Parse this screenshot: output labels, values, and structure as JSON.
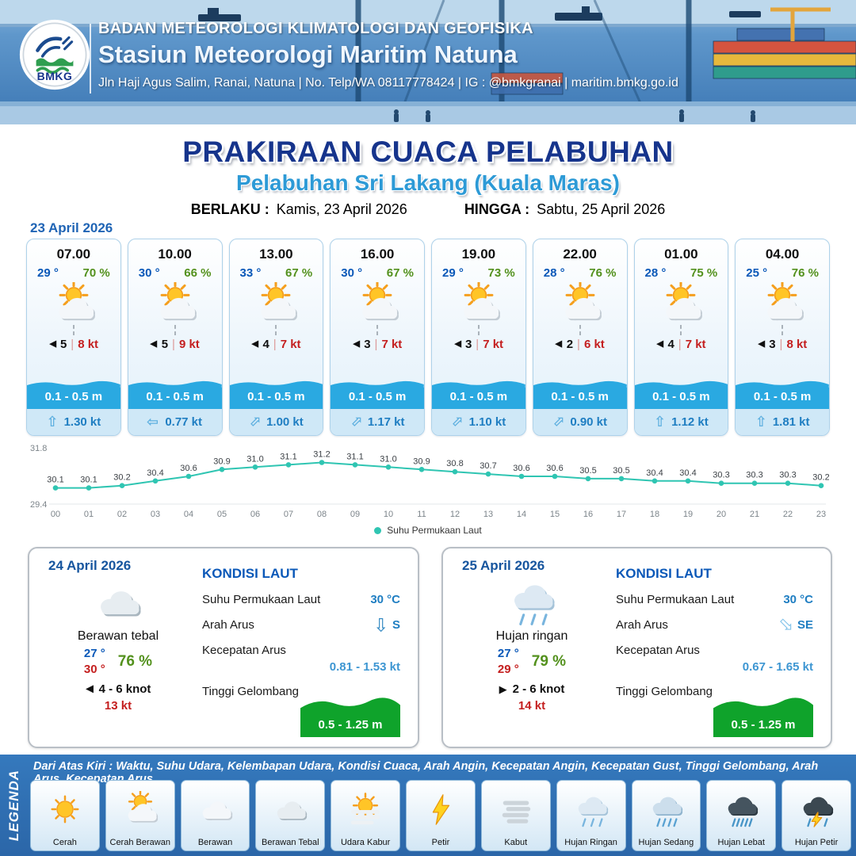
{
  "header": {
    "logo_text": "BMKG",
    "agency": "BADAN METEOROLOGI KLIMATOLOGI DAN GEOFISIKA",
    "station": "Stasiun Meteorologi Maritim Natuna",
    "contact": "Jln Haji Agus Salim, Ranai, Natuna  | No. Telp/WA 08117778424 | IG : @bmkgranai | maritim.bmkg.go.id"
  },
  "title": {
    "main": "PRAKIRAAN CUACA PELABUHAN",
    "subtitle": "Pelabuhan Sri Lakang (Kuala Maras)",
    "valid_from_label": "BERLAKU :",
    "valid_from": "Kamis, 23 April 2026",
    "valid_to_label": "HINGGA :",
    "valid_to": "Sabtu, 25 April 2026"
  },
  "forecast_date": "23 April 2026",
  "ui": {
    "wind_separator": "|"
  },
  "cards": [
    {
      "time": "07.00",
      "temp": "29 °",
      "humidity": "70 %",
      "icon": "cerah-berawan",
      "wind_dir": "left",
      "wind_speed": "5",
      "wind_gust": "8 kt",
      "wave": "0.1 - 0.5 m",
      "current_dir": "up",
      "current": "1.30 kt"
    },
    {
      "time": "10.00",
      "temp": "30 °",
      "humidity": "66 %",
      "icon": "cerah-berawan",
      "wind_dir": "left",
      "wind_speed": "5",
      "wind_gust": "9 kt",
      "wave": "0.1 - 0.5 m",
      "current_dir": "left",
      "current": "0.77 kt"
    },
    {
      "time": "13.00",
      "temp": "33 °",
      "humidity": "67 %",
      "icon": "cerah-berawan",
      "wind_dir": "left",
      "wind_speed": "4",
      "wind_gust": "7 kt",
      "wave": "0.1 - 0.5 m",
      "current_dir": "up-right",
      "current": "1.00 kt"
    },
    {
      "time": "16.00",
      "temp": "30 °",
      "humidity": "67 %",
      "icon": "cerah-berawan",
      "wind_dir": "left",
      "wind_speed": "3",
      "wind_gust": "7 kt",
      "wave": "0.1 - 0.5 m",
      "current_dir": "up-right",
      "current": "1.17 kt"
    },
    {
      "time": "19.00",
      "temp": "29 °",
      "humidity": "73 %",
      "icon": "cerah-berawan",
      "wind_dir": "left",
      "wind_speed": "3",
      "wind_gust": "7 kt",
      "wave": "0.1 - 0.5 m",
      "current_dir": "up-right",
      "current": "1.10 kt"
    },
    {
      "time": "22.00",
      "temp": "28 °",
      "humidity": "76 %",
      "icon": "cerah-berawan",
      "wind_dir": "left",
      "wind_speed": "2",
      "wind_gust": "6 kt",
      "wave": "0.1 - 0.5 m",
      "current_dir": "up-right",
      "current": "0.90 kt"
    },
    {
      "time": "01.00",
      "temp": "28 °",
      "humidity": "75 %",
      "icon": "cerah-berawan",
      "wind_dir": "left",
      "wind_speed": "4",
      "wind_gust": "7 kt",
      "wave": "0.1 - 0.5 m",
      "current_dir": "up",
      "current": "1.12 kt"
    },
    {
      "time": "04.00",
      "temp": "25 °",
      "humidity": "76 %",
      "icon": "cerah-berawan",
      "wind_dir": "left",
      "wind_speed": "3",
      "wind_gust": "8 kt",
      "wave": "0.1 - 0.5 m",
      "current_dir": "up",
      "current": "1.81 kt"
    }
  ],
  "chart_data": {
    "type": "line",
    "legend": "Suhu Permukaan Laut",
    "x": [
      "00",
      "01",
      "02",
      "03",
      "04",
      "05",
      "06",
      "07",
      "08",
      "09",
      "10",
      "11",
      "12",
      "13",
      "14",
      "15",
      "16",
      "17",
      "18",
      "19",
      "20",
      "21",
      "22",
      "23"
    ],
    "values": [
      30.1,
      30.1,
      30.2,
      30.4,
      30.6,
      30.9,
      31.0,
      31.1,
      31.2,
      31.1,
      31.0,
      30.9,
      30.8,
      30.7,
      30.6,
      30.6,
      30.5,
      30.5,
      30.4,
      30.4,
      30.3,
      30.3,
      30.3,
      30.2
    ],
    "ylim": [
      29.4,
      31.8
    ],
    "line_color": "#2fc5b2"
  },
  "daily": [
    {
      "date": "24 April 2026",
      "icon": "berawan-tebal",
      "condition": "Berawan tebal",
      "temp_min": "27 °",
      "temp_max": "30 °",
      "humidity": "76 %",
      "wind_dir": "left",
      "wind": "4 - 6 knot",
      "gust": "13 kt",
      "sea": {
        "title": "KONDISI LAUT",
        "sst_label": "Suhu Permukaan Laut",
        "sst": "30 °C",
        "dir_label": "Arah Arus",
        "dir": "S",
        "dir_arrow": "down",
        "speed_label": "Kecepatan Arus",
        "speed": "0.81 - 1.53 kt",
        "wave_label": "Tinggi Gelombang",
        "wave": "0.5 - 1.25 m"
      }
    },
    {
      "date": "25 April 2026",
      "icon": "hujan-ringan",
      "condition": "Hujan ringan",
      "temp_min": "27 °",
      "temp_max": "29 °",
      "humidity": "79 %",
      "wind_dir": "right",
      "wind": "2 - 6 knot",
      "gust": "14 kt",
      "sea": {
        "title": "KONDISI LAUT",
        "sst_label": "Suhu Permukaan Laut",
        "sst": "30 °C",
        "dir_label": "Arah Arus",
        "dir": "SE",
        "dir_arrow": "down-right",
        "speed_label": "Kecepatan Arus",
        "speed": "0.67 - 1.65 kt",
        "wave_label": "Tinggi Gelombang",
        "wave": "0.5 - 1.25 m"
      }
    }
  ],
  "legend": {
    "side_label": "LEGENDA",
    "description": "Dari Atas Kiri : Waktu, Suhu Udara, Kelembapan Udara, Kondisi Cuaca, Arah Angin, Kecepatan Angin, Kecepatan Gust, Tinggi Gelombang, Arah Arus, Kecepatan Arus",
    "items": [
      {
        "label": "Cerah",
        "icon": "cerah"
      },
      {
        "label": "Cerah Berawan",
        "icon": "cerah-berawan"
      },
      {
        "label": "Berawan",
        "icon": "berawan"
      },
      {
        "label": "Berawan Tebal",
        "icon": "berawan-tebal"
      },
      {
        "label": "Udara Kabur",
        "icon": "udara-kabur"
      },
      {
        "label": "Petir",
        "icon": "petir"
      },
      {
        "label": "Kabut",
        "icon": "kabut"
      },
      {
        "label": "Hujan Ringan",
        "icon": "hujan-ringan"
      },
      {
        "label": "Hujan Sedang",
        "icon": "hujan-sedang"
      },
      {
        "label": "Hujan Lebat",
        "icon": "hujan-lebat"
      },
      {
        "label": "Hujan Petir",
        "icon": "hujan-petir"
      }
    ]
  },
  "colors": {
    "title_navy": "#16348c",
    "subtitle_blue": "#2d9ad6",
    "temp_blue": "#0a58b8",
    "humidity_green": "#53911d",
    "gust_red": "#c41f1f",
    "wave_band_blue": "#2aa9e1",
    "current_text_blue": "#1f7ec2",
    "chart_teal": "#2fc5b2",
    "legend_bar_blue": "#2f6db3",
    "wave_green": "#0fa32b"
  }
}
